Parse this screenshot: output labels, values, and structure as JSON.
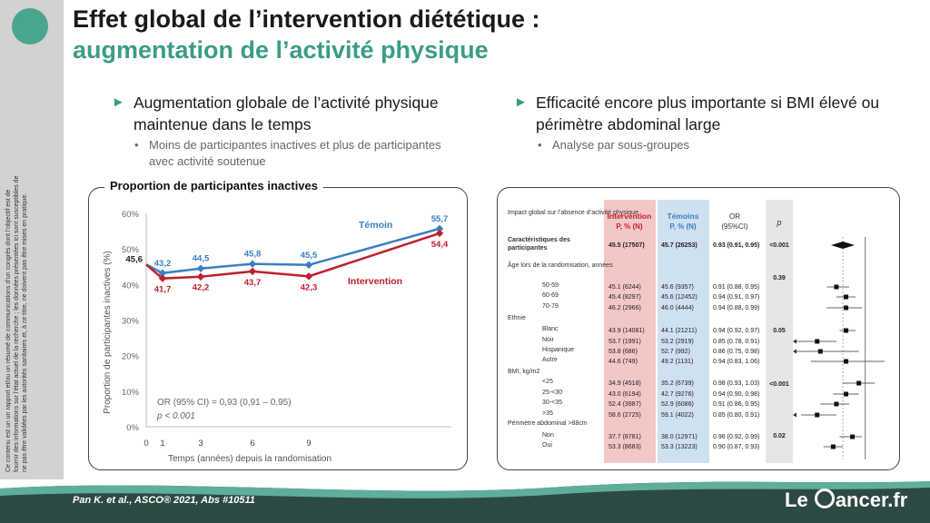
{
  "title": {
    "line1": "Effet global de l’intervention diététique :",
    "line2": "augmentation de l’activité physique"
  },
  "disclaimer": "Ce contenu est un un rapport et/ou un résumé de communications d’un congrès dont l’objectif est de fournir des informations sur l’état actuel de la recherche ; les données présentées ici sont susceptibles de ne pas être validées par les autorités sanitaires et, à ce titre, ne doivent pas être mises en pratique.",
  "left": {
    "bullet": "Augmentation globale de l’activité physique maintenue dans le temps",
    "sub": "Moins de participantes inactives et plus de participantes avec activité soutenue",
    "panel_title": "Proportion de participantes inactives"
  },
  "right": {
    "bullet": "Efficacité encore plus importante si BMI élevé ou périmètre abdominal large",
    "sub": "Analyse par sous-groupes"
  },
  "chart_data": {
    "type": "line",
    "ylabel": "Proportion de participantes inactives (%)",
    "xlabel": "Temps (années) depuis la randomisation",
    "x_ticks": [
      "0",
      "1",
      "3",
      "6",
      "9"
    ],
    "y_ticks": [
      "0%",
      "10%",
      "20%",
      "30%",
      "40%",
      "50%",
      "60%"
    ],
    "ylim": [
      0,
      60
    ],
    "x": [
      0,
      1,
      3,
      6,
      9,
      13
    ],
    "series": [
      {
        "name": "Témoin",
        "color": "#3a7fc1",
        "values": [
          45.6,
          43.2,
          44.5,
          45.8,
          45.5,
          55.7
        ],
        "labels": [
          "45,6",
          "43,2",
          "44,5",
          "45,8",
          "45,5",
          "55,7"
        ]
      },
      {
        "name": "Intervention",
        "color": "#c0202e",
        "values": [
          45.6,
          41.7,
          42.2,
          43.7,
          42.3,
          54.4
        ],
        "labels": [
          "",
          "41,7",
          "42,2",
          "43,7",
          "42,3",
          "54,4"
        ]
      }
    ],
    "annotation": {
      "or": "OR (95% CI) = 0,93 (0,91 – 0,95)",
      "p": "p < 0.001"
    }
  },
  "forest": {
    "header": {
      "label": "Impact global sur l’absence d’activité physique",
      "intervention": "Intervention",
      "intervention_sub": "P, % (N)",
      "temoins": "Témoins",
      "temoins_sub": "P, % (N)",
      "or": "OR",
      "or_sub": "(95%CI)",
      "p": "p"
    },
    "rows": [
      {
        "label": "Caractéristiques des participantes",
        "indent": 0,
        "bold": true,
        "int": "45.5 (17507)",
        "tem": "45.7 (26253)",
        "or": "0.93 (0.91, 0.95)",
        "p": "<0.001",
        "est": 0.93,
        "lo": 0.91,
        "hi": 0.95,
        "diamond": true
      },
      {
        "label": "Âge lors de la randomisation, années",
        "indent": 0,
        "p": "0.39"
      },
      {
        "label": "50-59",
        "indent": 1,
        "int": "45.1 (6244)",
        "tem": "45.6 (9357)",
        "or": "0.91 (0.88, 0.95)",
        "est": 0.91,
        "lo": 0.88,
        "hi": 0.95
      },
      {
        "label": "60-69",
        "indent": 1,
        "int": "45.4 (8297)",
        "tem": "45.6 (12452)",
        "or": "0.94 (0.91, 0.97)",
        "est": 0.94,
        "lo": 0.91,
        "hi": 0.97
      },
      {
        "label": "70-79",
        "indent": 1,
        "int": "46.2 (2966)",
        "tem": "46.0 (4444)",
        "or": "0.94 (0.88, 0.99)",
        "est": 0.94,
        "lo": 0.88,
        "hi": 0.99
      },
      {
        "label": "Ethnie",
        "indent": 0,
        "p": "0.05"
      },
      {
        "label": "Blanc",
        "indent": 1,
        "int": "43.9 (14081)",
        "tem": "44.1 (21211)",
        "or": "0.94 (0.92, 0.97)",
        "est": 0.94,
        "lo": 0.92,
        "hi": 0.97
      },
      {
        "label": "Noir",
        "indent": 1,
        "int": "53.7 (1991)",
        "tem": "53.2 (2919)",
        "or": "0.85 (0.78, 0.91)",
        "est": 0.85,
        "lo": 0.78,
        "hi": 0.91,
        "arrow": true
      },
      {
        "label": "Hispanique",
        "indent": 1,
        "int": "53.8 (686)",
        "tem": "52.7 (992)",
        "or": "0.86 (0.75, 0.98)",
        "est": 0.86,
        "lo": 0.75,
        "hi": 0.98,
        "arrow": true
      },
      {
        "label": "Autre",
        "indent": 1,
        "int": "44.6 (749)",
        "tem": "49.2 (1131)",
        "or": "0.94 (0.83, 1.06)",
        "est": 0.94,
        "lo": 0.83,
        "hi": 1.06
      },
      {
        "label": "BMI, kg/m2",
        "indent": 0,
        "p": "<0.001"
      },
      {
        "label": "<25",
        "indent": 1,
        "int": "34.9 (4518)",
        "tem": "35.2 (6739)",
        "or": "0.98 (0.93, 1.03)",
        "est": 0.98,
        "lo": 0.93,
        "hi": 1.03
      },
      {
        "label": "25-<30",
        "indent": 1,
        "int": "43.0 (6194)",
        "tem": "42.7 (9276)",
        "or": "0.94 (0.90, 0.98)",
        "est": 0.94,
        "lo": 0.9,
        "hi": 0.98
      },
      {
        "label": "30-<35",
        "indent": 1,
        "int": "52.4 (3987)",
        "tem": "52.9 (6086)",
        "or": "0.91 (0.86, 0.95)",
        "est": 0.91,
        "lo": 0.86,
        "hi": 0.95
      },
      {
        "label": ">35",
        "indent": 1,
        "int": "58.6 (2725)",
        "tem": "59.1 (4022)",
        "or": "0.85 (0.80, 0.91)",
        "est": 0.85,
        "lo": 0.8,
        "hi": 0.91,
        "arrow": true
      },
      {
        "label": "Périmètre abdominal >88cm",
        "indent": 0,
        "p": "0.02"
      },
      {
        "label": "Non",
        "indent": 1,
        "int": "37.7 (8781)",
        "tem": "38.0 (12971)",
        "or": "0.96 (0.92, 0.99)",
        "est": 0.96,
        "lo": 0.92,
        "hi": 0.99
      },
      {
        "label": "Oui",
        "indent": 1,
        "int": "53.3 (8683)",
        "tem": "53.3 (13223)",
        "or": "0.90 (0.87, 0.93)",
        "est": 0.9,
        "lo": 0.87,
        "hi": 0.93
      }
    ]
  },
  "footer": {
    "citation": "Pan K. et al., ASCO® 2021, Abs #10511",
    "logo_left": "Le",
    "logo_right": "ancer.fr"
  },
  "colors": {
    "accent": "#3b9c86",
    "footer": "#2c4a43",
    "temoin": "#3a7fc1",
    "intervention": "#c0202e"
  }
}
